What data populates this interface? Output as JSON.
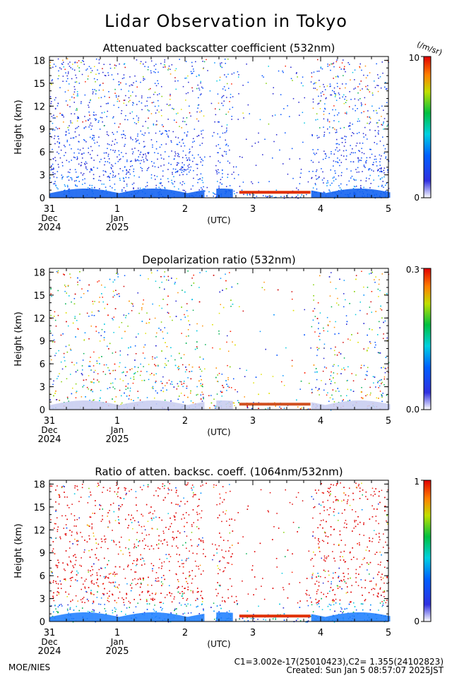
{
  "page": {
    "title": "Lidar Observation in Tokyo",
    "footer_left": "MOE/NIES",
    "footer_right_line1": "C1=3.002e-17(25010423),C2= 1.355(24102823)",
    "footer_right_line2": "Created: Sun Jan  5 08:57:07 2025JST"
  },
  "chart_data": [
    {
      "type": "heatmap",
      "title": "Attenuated backscatter coefficient (532nm)",
      "ylabel": "Height (km)",
      "xlabel": "(UTC)",
      "ylim": [
        0,
        18.5
      ],
      "yticks": [
        "0",
        "3",
        "6",
        "9",
        "12",
        "15",
        "18"
      ],
      "xticks": [
        {
          "value": 0,
          "label": "31",
          "sub1": "Dec",
          "sub2": "2024"
        },
        {
          "value": 1,
          "label": "1",
          "sub1": "Jan",
          "sub2": "2025"
        },
        {
          "value": 2,
          "label": "2"
        },
        {
          "value": 3,
          "label": "3"
        },
        {
          "value": 4,
          "label": "4"
        },
        {
          "value": 5,
          "label": "5"
        }
      ],
      "xlim": [
        0,
        5
      ],
      "colorbar": {
        "min_label": "0",
        "max_label": "10",
        "unit_label": "(/m/sr)",
        "scale": "linear"
      },
      "features": {
        "dense_aerosol_layer_top_km": 1.0,
        "cloud_gap_intervals_days": [
          [
            2.27,
            2.45
          ],
          [
            2.7,
            3.85
          ]
        ],
        "low_cloud_height_km": 0.6
      }
    },
    {
      "type": "heatmap",
      "title": "Depolarization ratio (532nm)",
      "ylabel": "Height (km)",
      "xlabel": "(UTC)",
      "ylim": [
        0,
        18.5
      ],
      "yticks": [
        "0",
        "3",
        "6",
        "9",
        "12",
        "15",
        "18"
      ],
      "xticks": [
        {
          "value": 0,
          "label": "31",
          "sub1": "Dec",
          "sub2": "2024"
        },
        {
          "value": 1,
          "label": "1",
          "sub1": "Jan",
          "sub2": "2025"
        },
        {
          "value": 2,
          "label": "2"
        },
        {
          "value": 3,
          "label": "3"
        },
        {
          "value": 4,
          "label": "4"
        },
        {
          "value": 5,
          "label": "5"
        }
      ],
      "xlim": [
        0,
        5
      ],
      "colorbar": {
        "min_label": "0.0",
        "max_label": "0.3",
        "scale": "linear"
      }
    },
    {
      "type": "heatmap",
      "title": "Ratio of atten. backsc. coeff. (1064nm/532nm)",
      "ylabel": "Height (km)",
      "xlabel": "(UTC)",
      "ylim": [
        0,
        18.5
      ],
      "yticks": [
        "0",
        "3",
        "6",
        "9",
        "12",
        "15",
        "18"
      ],
      "xticks": [
        {
          "value": 0,
          "label": "31",
          "sub1": "Dec",
          "sub2": "2024"
        },
        {
          "value": 1,
          "label": "1",
          "sub1": "Jan",
          "sub2": "2025"
        },
        {
          "value": 2,
          "label": "2"
        },
        {
          "value": 3,
          "label": "3"
        },
        {
          "value": 4,
          "label": "4"
        },
        {
          "value": 5,
          "label": "5"
        }
      ],
      "xlim": [
        0,
        5
      ],
      "colorbar": {
        "min_label": "0",
        "max_label": "1",
        "scale": "linear"
      }
    }
  ]
}
